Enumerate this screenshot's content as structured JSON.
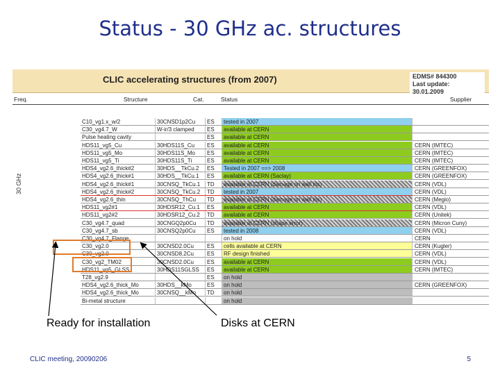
{
  "slide": {
    "title": "Status - 30 GHz ac. structures",
    "footer": "CLIC meeting, 20090206",
    "page_number": "5",
    "annotation_left": "Ready for installation",
    "annotation_right": "Disks at CERN"
  },
  "sheet": {
    "banner_title": "CLIC accelerating structures (from 2007)",
    "edms_line1": "EDMS# 844300",
    "edms_line2": "Last update: 30.01.2009",
    "headers": {
      "freq": "Freq.",
      "structure": "Structure",
      "cat": "Cat.",
      "status": "Status",
      "supplier": "Supplier"
    },
    "side_label": "30 GHz",
    "rows": [
      {
        "name": "C10_vg1.x_w/2",
        "id": "30CNSD1p2Cu",
        "cat": "ES",
        "status": "tested in 2007",
        "style": "blue",
        "supplier": ""
      },
      {
        "name": "C30_vg4.7_W",
        "id": "W-ir/3 clamped",
        "cat": "ES",
        "status": "available at CERN",
        "style": "green",
        "supplier": ""
      },
      {
        "name": "Pulse heating cavity",
        "id": "",
        "cat": "ES",
        "status": "available at CERN",
        "style": "green",
        "supplier": ""
      },
      {
        "name": "HDS11_vg5_Cu",
        "id": "30HDS11S_Cu",
        "cat": "ES",
        "status": "available at CERN",
        "style": "green",
        "supplier": "CERN (IMTEC)"
      },
      {
        "name": "HDS11_vg5_Mo",
        "id": "30HDS11S_Mo",
        "cat": "ES",
        "status": "available at CERN",
        "style": "green",
        "supplier": "CERN (IMTEC)"
      },
      {
        "name": "HDS11_vg5_Ti",
        "id": "30HDS11S_Ti",
        "cat": "ES",
        "status": "available at CERN",
        "style": "green",
        "supplier": "CERN (IMTEC)"
      },
      {
        "name": "HDS4_vg2.6_thick#2",
        "id": "30HDS__TkCu.2",
        "cat": "ES",
        "status": "Tested in 2007 ==> 2008",
        "style": "blue",
        "supplier": "CERN (GREENFOX)"
      },
      {
        "name": "HDS4_vg2.6_thick#1",
        "id": "30HDS__TkCu.1",
        "cat": "ES",
        "status": "available at CERN (Saclay)",
        "style": "green",
        "supplier": "CERN (GREENFOX)"
      },
      {
        "name": "HDS4_vg2.6_thick#1",
        "id": "30CNSQ_TkCu.1",
        "cat": "TD",
        "status": "available at CERN (damage on wall iris)",
        "style": "hatch",
        "supplier": "CERN (VDL)"
      },
      {
        "name": "HDS4_vg2.6_thick#2",
        "id": "30CNSQ_TkCu.2",
        "cat": "TD",
        "status": "tested in 2007",
        "style": "blue",
        "supplier": "CERN (VDL)"
      },
      {
        "name": "HDS4_vg2.6_thin",
        "id": "30CNSQ_ThCu",
        "cat": "TD",
        "status": "available at CERN (damage on wall iris)",
        "style": "hatch",
        "supplier": "CERN (Megio)"
      },
      {
        "name": "HDS11_vg2#1",
        "id": "30HDSR12_Cu.1",
        "cat": "ES",
        "status": "available at CERN",
        "style": "green",
        "supplier": "CERN (VDL)"
      },
      {
        "name": "HDS11_vg2#2",
        "id": "30HDSR12_Cu.2",
        "cat": "TD",
        "status": "available at CERN",
        "style": "green",
        "supplier": "CERN (Unitek)"
      },
      {
        "name": "C30_vg4.7_quad",
        "id": "30CNGQ2p0Cu",
        "cat": "TD",
        "status": "available at CERN (shape error)",
        "style": "hatch",
        "supplier": "CERN (Micron Cuny)"
      },
      {
        "name": "C30_vg4.7_sb",
        "id": "30CNSQ2p0Cu",
        "cat": "ES",
        "status": "tested in 2008",
        "style": "blue",
        "supplier": "CERN (VDL)"
      },
      {
        "name": "C30_vg4.7_Flange",
        "id": "",
        "cat": "",
        "status": "on hold",
        "style": "white",
        "supplier": "CERN"
      },
      {
        "name": "C30_vg2.0",
        "id": "30CNSD2.0Cu",
        "cat": "ES",
        "status": "cells available at CERN",
        "style": "yellow",
        "supplier": "CERN (Kugler)"
      },
      {
        "name": "C30_vg2.0",
        "id": "30CNSD8.2Cu",
        "cat": "ES",
        "status": "RF design finished",
        "style": "yellow",
        "supplier": "CERN (VDL)"
      },
      {
        "name": "C30_vg2_TM02",
        "id": "30CNSD2.0Cu",
        "cat": "ES",
        "status": "available at CERN",
        "style": "green",
        "supplier": "CERN (VDL)"
      },
      {
        "name": "HDS11_vg5_GLSS",
        "id": "30HDS11SGLSS",
        "cat": "ES",
        "status": "available at CERN",
        "style": "green",
        "supplier": "CERN (IMTEC)"
      },
      {
        "name": "T28_vg2.9",
        "id": "",
        "cat": "ES",
        "status": "on hold",
        "style": "grey",
        "supplier": ""
      },
      {
        "name": "HDS4_vg2.6_thick_Mo",
        "id": "30HDS__kMo",
        "cat": "ES",
        "status": "on hold",
        "style": "grey",
        "supplier": "CERN (GREENFOX)"
      },
      {
        "name": "HDS4_vg2.6_thick_Mo",
        "id": "30CNSQ__kMo",
        "cat": "TD",
        "status": "on hold",
        "style": "grey",
        "supplier": ""
      },
      {
        "name": "Bi-metal structure",
        "id": "",
        "cat": "",
        "status": "on hold",
        "style": "grey",
        "supplier": ""
      }
    ]
  }
}
